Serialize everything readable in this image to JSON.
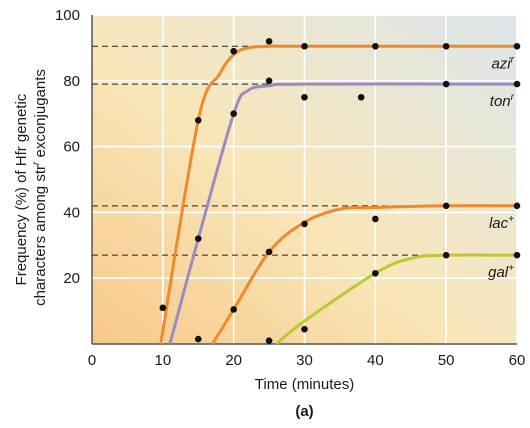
{
  "chart_data": {
    "type": "line",
    "title": "",
    "panel_label": "(a)",
    "xlabel": "Time (minutes)",
    "ylabel_lines": [
      "Frequency (%) of Hfr genetic",
      "characters among str",
      "r",
      " exconjugants"
    ],
    "xlim": [
      0,
      60
    ],
    "ylim": [
      0,
      100
    ],
    "x_ticks": [
      0,
      10,
      20,
      30,
      40,
      50,
      60
    ],
    "y_ticks": [
      20,
      40,
      60,
      80,
      100
    ],
    "grid": true,
    "legend": "none",
    "background_gradient": [
      "#f7c98a",
      "#f9e6b8",
      "#dce6ec"
    ],
    "series": [
      {
        "name": "azi",
        "name_superscript": "r",
        "color": "#ee8a2e",
        "plateau": 90.5,
        "points": [
          [
            10,
            11
          ],
          [
            15,
            68
          ],
          [
            20,
            89
          ],
          [
            25,
            92
          ],
          [
            30,
            90.5
          ],
          [
            40,
            90.5
          ],
          [
            50,
            90.5
          ],
          [
            60,
            90.5
          ]
        ],
        "curve": [
          [
            9.7,
            0
          ],
          [
            15,
            68
          ],
          [
            18,
            82
          ],
          [
            20,
            88
          ],
          [
            22,
            90
          ],
          [
            25,
            90.5
          ],
          [
            30,
            90.5
          ],
          [
            60,
            90.5
          ]
        ]
      },
      {
        "name": "ton",
        "name_superscript": "r",
        "color": "#9b8bc2",
        "plateau": 79,
        "points": [
          [
            15,
            32
          ],
          [
            20,
            70
          ],
          [
            25,
            80
          ],
          [
            30,
            75
          ],
          [
            38,
            75
          ],
          [
            50,
            79
          ],
          [
            60,
            79
          ]
        ],
        "curve": [
          [
            11,
            0
          ],
          [
            15,
            32
          ],
          [
            20,
            70
          ],
          [
            22,
            77
          ],
          [
            25,
            78.5
          ],
          [
            30,
            79
          ],
          [
            60,
            79
          ]
        ]
      },
      {
        "name": "lac",
        "name_superscript": "+",
        "color": "#ee8a2e",
        "plateau": 42,
        "points": [
          [
            15,
            1.5
          ],
          [
            20,
            10.5
          ],
          [
            25,
            28
          ],
          [
            30,
            36.5
          ],
          [
            40,
            38
          ],
          [
            50,
            42
          ],
          [
            60,
            42
          ]
        ],
        "curve": [
          [
            17,
            0
          ],
          [
            20,
            10.5
          ],
          [
            25,
            28
          ],
          [
            30,
            37
          ],
          [
            35,
            41
          ],
          [
            40,
            41.5
          ],
          [
            50,
            42
          ],
          [
            60,
            42
          ]
        ]
      },
      {
        "name": "gal",
        "name_superscript": "+",
        "color": "#b5cc35",
        "plateau": 27,
        "points": [
          [
            25,
            1
          ],
          [
            30,
            4.5
          ],
          [
            40,
            21.5
          ],
          [
            50,
            27
          ],
          [
            60,
            27
          ]
        ],
        "curve": [
          [
            26,
            0
          ],
          [
            30,
            7
          ],
          [
            40,
            21.5
          ],
          [
            45,
            26
          ],
          [
            50,
            27
          ],
          [
            60,
            27
          ]
        ]
      }
    ]
  }
}
